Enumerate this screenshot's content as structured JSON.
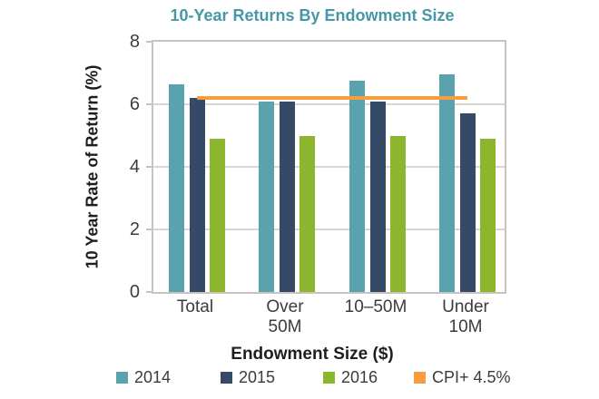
{
  "title": "10-Year Returns By Endowment Size",
  "chart_data": {
    "type": "bar",
    "title": "10-Year Returns By Endowment Size",
    "xlabel": "Endowment Size ($)",
    "ylabel": "10 Year Rate of Return (%)",
    "ylim": [
      0,
      8
    ],
    "yticks": [
      0,
      2,
      4,
      6,
      8
    ],
    "grid": true,
    "legend_position": "bottom",
    "categories": [
      "Total",
      "Over\n50M",
      "10–50M",
      "Under\n10M"
    ],
    "series": [
      {
        "name": "2014",
        "color": "#5AA2AE",
        "values": [
          6.65,
          6.1,
          6.75,
          6.95
        ]
      },
      {
        "name": "2015",
        "color": "#364A67",
        "values": [
          6.2,
          6.1,
          6.1,
          5.7
        ]
      },
      {
        "name": "2016",
        "color": "#8CB62E",
        "values": [
          4.9,
          5.0,
          5.0,
          4.9
        ]
      }
    ],
    "reference_line": {
      "label": "CPI+ 4.5%",
      "value": 6.2,
      "color": "#F89C3D"
    }
  },
  "colors": {
    "title_text": "#4797A9",
    "axis_text": "#3D3D3D",
    "gridline": "#DAD6D3",
    "plot_border": "#C8C3C0"
  }
}
